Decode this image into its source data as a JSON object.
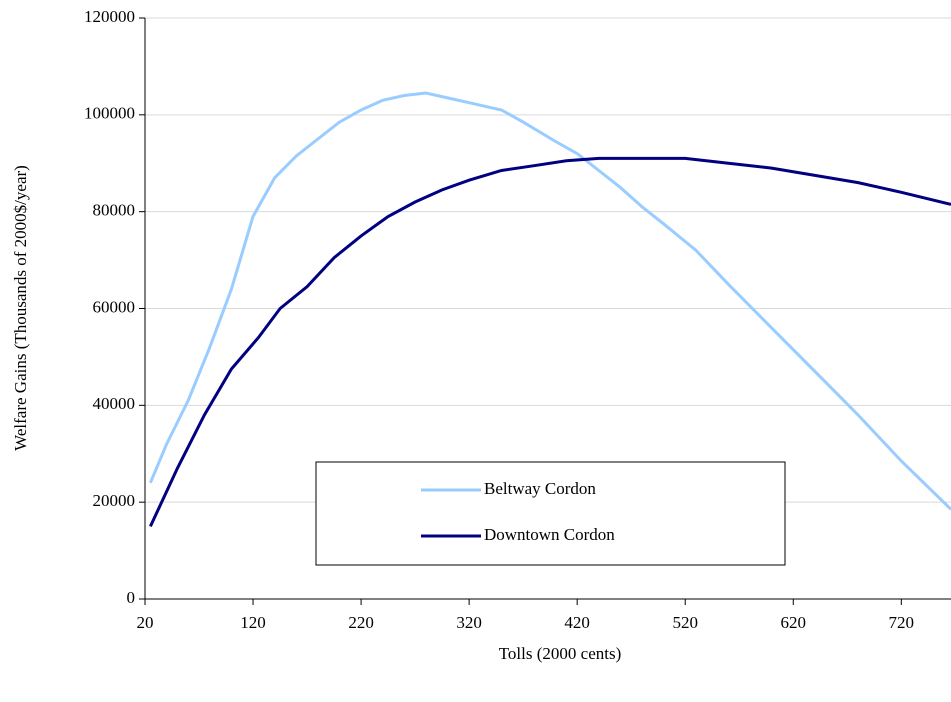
{
  "chart_data": {
    "type": "line",
    "xlabel": "Tolls (2000 cents)",
    "ylabel": "Welfare Gains (Thousands of 2000$/year)",
    "xlim": [
      20,
      766
    ],
    "xticks": [
      20,
      120,
      220,
      320,
      420,
      520,
      620,
      720
    ],
    "ylim": [
      0,
      120000
    ],
    "yticks": [
      0,
      20000,
      40000,
      60000,
      80000,
      100000,
      120000
    ],
    "grid": true,
    "legend": "lower center",
    "series": [
      {
        "name": "Beltway Cordon",
        "color": "#99ccff",
        "x": [
          25,
          40,
          60,
          80,
          100,
          120,
          140,
          160,
          180,
          200,
          220,
          240,
          260,
          280,
          300,
          320,
          350,
          370,
          400,
          420,
          440,
          460,
          480,
          500,
          530,
          560,
          600,
          640,
          680,
          720,
          766
        ],
        "values": [
          24000,
          32000,
          41000,
          52000,
          64000,
          79000,
          87000,
          91500,
          95000,
          98500,
          101000,
          103000,
          104000,
          104500,
          103500,
          102500,
          101000,
          98500,
          94500,
          92000,
          88500,
          85000,
          81000,
          77500,
          72000,
          65000,
          56000,
          47000,
          38000,
          28500,
          18500
        ]
      },
      {
        "name": "Downtown Cordon",
        "color": "#000080",
        "x": [
          25,
          50,
          75,
          100,
          125,
          145,
          170,
          195,
          220,
          245,
          270,
          295,
          320,
          350,
          380,
          410,
          440,
          480,
          520,
          560,
          600,
          640,
          680,
          720,
          766
        ],
        "values": [
          15000,
          27000,
          38000,
          47500,
          54000,
          60000,
          64500,
          70500,
          75000,
          79000,
          82000,
          84500,
          86500,
          88500,
          89500,
          90500,
          91000,
          91000,
          91000,
          90000,
          89000,
          87500,
          86000,
          84000,
          81500
        ]
      }
    ]
  }
}
